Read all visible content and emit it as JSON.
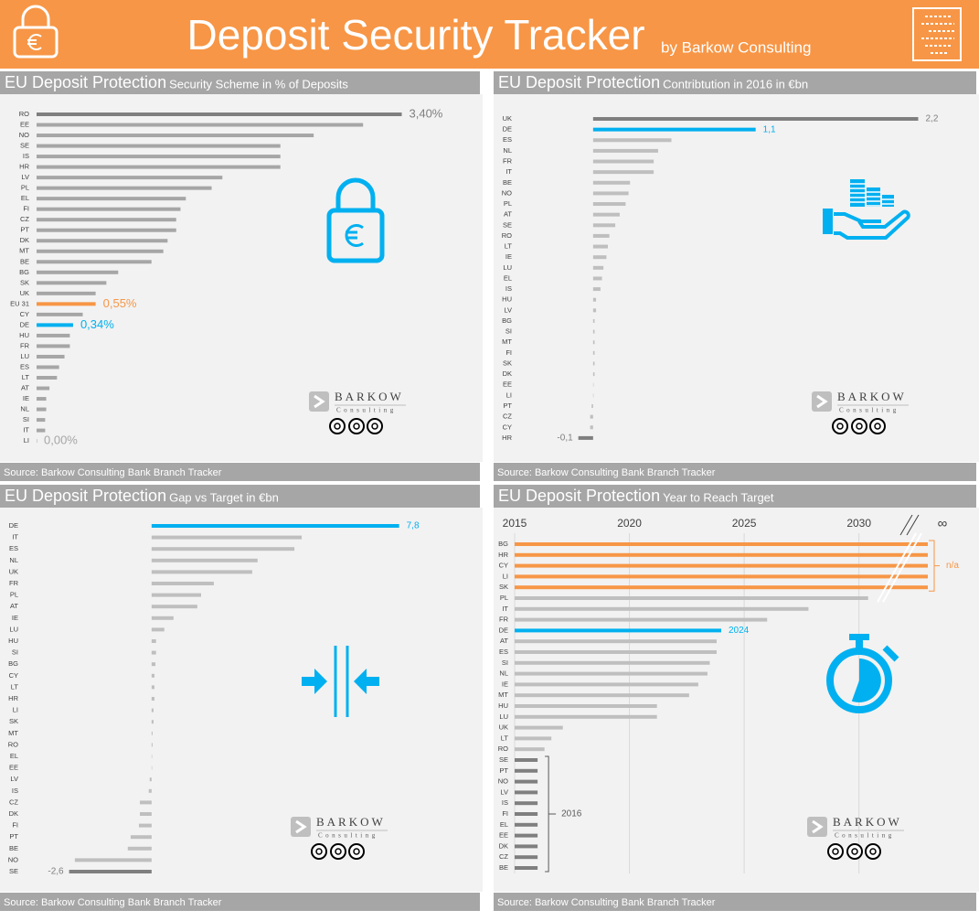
{
  "header": {
    "title": "Deposit Security Tracker",
    "subtitle": "by Barkow Consulting"
  },
  "logo": {
    "name": "BARKOW",
    "tagline": "Consulting"
  },
  "chart_data": [
    {
      "type": "bar",
      "orientation": "horizontal",
      "title": "EU Deposit Protection",
      "subtitle": "Security Scheme in % of Deposits",
      "source": "Source: Barkow Consulting Bank Branch Tracker",
      "categories": [
        "RO",
        "EE",
        "NO",
        "SE",
        "IS",
        "HR",
        "LV",
        "PL",
        "EL",
        "FI",
        "CZ",
        "PT",
        "DK",
        "MT",
        "BE",
        "BG",
        "SK",
        "UK",
        "EU 31",
        "CY",
        "DE",
        "HU",
        "FR",
        "LU",
        "ES",
        "LT",
        "AT",
        "IE",
        "NL",
        "SI",
        "IT",
        "LI"
      ],
      "values": [
        3.4,
        3.04,
        2.58,
        2.27,
        2.27,
        2.27,
        1.73,
        1.63,
        1.39,
        1.34,
        1.3,
        1.3,
        1.22,
        1.18,
        1.07,
        0.76,
        0.65,
        0.55,
        0.55,
        0.43,
        0.34,
        0.31,
        0.31,
        0.26,
        0.21,
        0.19,
        0.12,
        0.09,
        0.09,
        0.08,
        0.08,
        0
      ],
      "value_labels": [
        "3,40%",
        null,
        null,
        null,
        null,
        null,
        null,
        null,
        null,
        null,
        null,
        null,
        null,
        null,
        null,
        null,
        null,
        null,
        "0,55%",
        null,
        "0,34%",
        null,
        null,
        null,
        null,
        null,
        null,
        null,
        null,
        null,
        null,
        "0,00%"
      ],
      "colors": [
        "#7f7f7f",
        "#a6a6a6",
        "#a6a6a6",
        "#a6a6a6",
        "#a6a6a6",
        "#a6a6a6",
        "#a6a6a6",
        "#a6a6a6",
        "#a6a6a6",
        "#a6a6a6",
        "#a6a6a6",
        "#a6a6a6",
        "#a6a6a6",
        "#a6a6a6",
        "#a6a6a6",
        "#a6a6a6",
        "#a6a6a6",
        "#a6a6a6",
        "#f79646",
        "#a6a6a6",
        "#00b0f0",
        "#a6a6a6",
        "#a6a6a6",
        "#a6a6a6",
        "#a6a6a6",
        "#a6a6a6",
        "#a6a6a6",
        "#a6a6a6",
        "#a6a6a6",
        "#a6a6a6",
        "#a6a6a6",
        "#a6a6a6"
      ],
      "xlim": [
        0,
        4
      ]
    },
    {
      "type": "bar",
      "orientation": "horizontal",
      "title": "EU Deposit Protection",
      "subtitle": "Contribtution in 2016 in €bn",
      "source": "Source: Barkow Consulting Bank Branch Tracker",
      "categories": [
        "UK",
        "DE",
        "ES",
        "NL",
        "FR",
        "IT",
        "BE",
        "NO",
        "PL",
        "AT",
        "SE",
        "RO",
        "LT",
        "IE",
        "LU",
        "EL",
        "IS",
        "HU",
        "LV",
        "BG",
        "SI",
        "MT",
        "FI",
        "SK",
        "DK",
        "EE",
        "LI",
        "PT",
        "CZ",
        "CY",
        "HR"
      ],
      "values": [
        2.2,
        1.1,
        0.53,
        0.44,
        0.41,
        0.41,
        0.25,
        0.24,
        0.22,
        0.18,
        0.15,
        0.11,
        0.1,
        0.09,
        0.07,
        0.06,
        0.05,
        0.02,
        0.02,
        0.01,
        0.01,
        0.01,
        0.01,
        0.01,
        0.01,
        0,
        0,
        -0.01,
        -0.02,
        -0.02,
        -0.1
      ],
      "value_labels": [
        "2,2",
        "1,1",
        null,
        null,
        null,
        null,
        null,
        null,
        null,
        null,
        null,
        null,
        null,
        null,
        null,
        null,
        null,
        null,
        null,
        null,
        null,
        null,
        null,
        null,
        null,
        null,
        null,
        null,
        null,
        null,
        "-0,1"
      ],
      "colors": [
        "#7f7f7f",
        "#00b0f0",
        "#bfbfbf",
        "#bfbfbf",
        "#bfbfbf",
        "#bfbfbf",
        "#bfbfbf",
        "#bfbfbf",
        "#bfbfbf",
        "#bfbfbf",
        "#bfbfbf",
        "#bfbfbf",
        "#bfbfbf",
        "#bfbfbf",
        "#bfbfbf",
        "#bfbfbf",
        "#bfbfbf",
        "#bfbfbf",
        "#bfbfbf",
        "#bfbfbf",
        "#bfbfbf",
        "#bfbfbf",
        "#bfbfbf",
        "#bfbfbf",
        "#bfbfbf",
        "#bfbfbf",
        "#bfbfbf",
        "#bfbfbf",
        "#bfbfbf",
        "#bfbfbf",
        "#7f7f7f"
      ],
      "xlim": [
        -0.5,
        2.5
      ]
    },
    {
      "type": "bar",
      "orientation": "horizontal",
      "title": "EU Deposit Protection",
      "subtitle": "Gap vs Target in €bn",
      "source": "Source: Barkow Consulting Bank Branch Tracker",
      "categories": [
        "DE",
        "IT",
        "ES",
        "NL",
        "UK",
        "FR",
        "PL",
        "AT",
        "IE",
        "LU",
        "HU",
        "SI",
        "BG",
        "CY",
        "LT",
        "HR",
        "LI",
        "SK",
        "MT",
        "RO",
        "EL",
        "EE",
        "LV",
        "IS",
        "CZ",
        "DK",
        "FI",
        "PT",
        "BE",
        "NO",
        "SE"
      ],
      "values": [
        7.8,
        4.73,
        4.5,
        3.34,
        3.17,
        1.96,
        1.56,
        1.44,
        0.69,
        0.4,
        0.14,
        0.14,
        0.12,
        0.09,
        0.09,
        0.09,
        0.06,
        0.06,
        0.03,
        0.03,
        0,
        0,
        -0.06,
        -0.09,
        -0.37,
        -0.37,
        -0.4,
        -0.66,
        -0.75,
        -2.42,
        -2.6
      ],
      "value_labels": [
        "7,8",
        null,
        null,
        null,
        null,
        null,
        null,
        null,
        null,
        null,
        null,
        null,
        null,
        null,
        null,
        null,
        null,
        null,
        null,
        null,
        null,
        null,
        null,
        null,
        null,
        null,
        null,
        null,
        null,
        null,
        "-2,6"
      ],
      "colors": [
        "#00b0f0",
        "#bfbfbf",
        "#bfbfbf",
        "#bfbfbf",
        "#bfbfbf",
        "#bfbfbf",
        "#bfbfbf",
        "#bfbfbf",
        "#bfbfbf",
        "#bfbfbf",
        "#bfbfbf",
        "#bfbfbf",
        "#bfbfbf",
        "#bfbfbf",
        "#bfbfbf",
        "#bfbfbf",
        "#bfbfbf",
        "#bfbfbf",
        "#bfbfbf",
        "#bfbfbf",
        "#bfbfbf",
        "#bfbfbf",
        "#bfbfbf",
        "#bfbfbf",
        "#bfbfbf",
        "#bfbfbf",
        "#bfbfbf",
        "#bfbfbf",
        "#bfbfbf",
        "#bfbfbf",
        "#7f7f7f"
      ],
      "xlim": [
        -4,
        10
      ]
    },
    {
      "type": "bar",
      "orientation": "horizontal",
      "title": "EU Deposit Protection",
      "subtitle": "Year to Reach Target",
      "source": "Source: Barkow Consulting Bank Branch Tracker",
      "categories": [
        "BG",
        "HR",
        "CY",
        "LI",
        "SK",
        "PL",
        "IT",
        "FR",
        "DE",
        "AT",
        "ES",
        "SI",
        "NL",
        "IE",
        "MT",
        "HU",
        "LU",
        "UK",
        "LT",
        "RO",
        "SE",
        "PT",
        "NO",
        "LV",
        "IS",
        "FI",
        "EL",
        "EE",
        "DK",
        "CZ",
        "BE"
      ],
      "values": [
        null,
        null,
        null,
        null,
        null,
        2030.4,
        2027.8,
        2026.0,
        2024,
        2023.8,
        2023.8,
        2023.5,
        2023.4,
        2023.0,
        2022.6,
        2021.2,
        2021.2,
        2017.1,
        2016.6,
        2016.3,
        2016,
        2016,
        2016,
        2016,
        2016,
        2016,
        2016,
        2016,
        2016,
        2016,
        2016
      ],
      "value_labels": [
        null,
        null,
        null,
        null,
        null,
        null,
        null,
        null,
        "2024",
        null,
        null,
        null,
        null,
        null,
        null,
        null,
        null,
        null,
        null,
        null,
        null,
        null,
        null,
        null,
        null,
        null,
        null,
        null,
        null,
        null,
        null
      ],
      "colors": [
        "#f79646",
        "#f79646",
        "#f79646",
        "#f79646",
        "#f79646",
        "#bfbfbf",
        "#bfbfbf",
        "#bfbfbf",
        "#00b0f0",
        "#bfbfbf",
        "#bfbfbf",
        "#bfbfbf",
        "#bfbfbf",
        "#bfbfbf",
        "#bfbfbf",
        "#bfbfbf",
        "#bfbfbf",
        "#bfbfbf",
        "#bfbfbf",
        "#bfbfbf",
        "#7f7f7f",
        "#7f7f7f",
        "#7f7f7f",
        "#7f7f7f",
        "#7f7f7f",
        "#7f7f7f",
        "#7f7f7f",
        "#7f7f7f",
        "#7f7f7f",
        "#7f7f7f",
        "#7f7f7f"
      ],
      "xlim": [
        2015,
        2033
      ],
      "xticks": [
        2015,
        2020,
        2025,
        2030
      ],
      "grid": true,
      "infinity_label": "∞",
      "na_label": "n/a",
      "bracket_label": "2016"
    }
  ]
}
